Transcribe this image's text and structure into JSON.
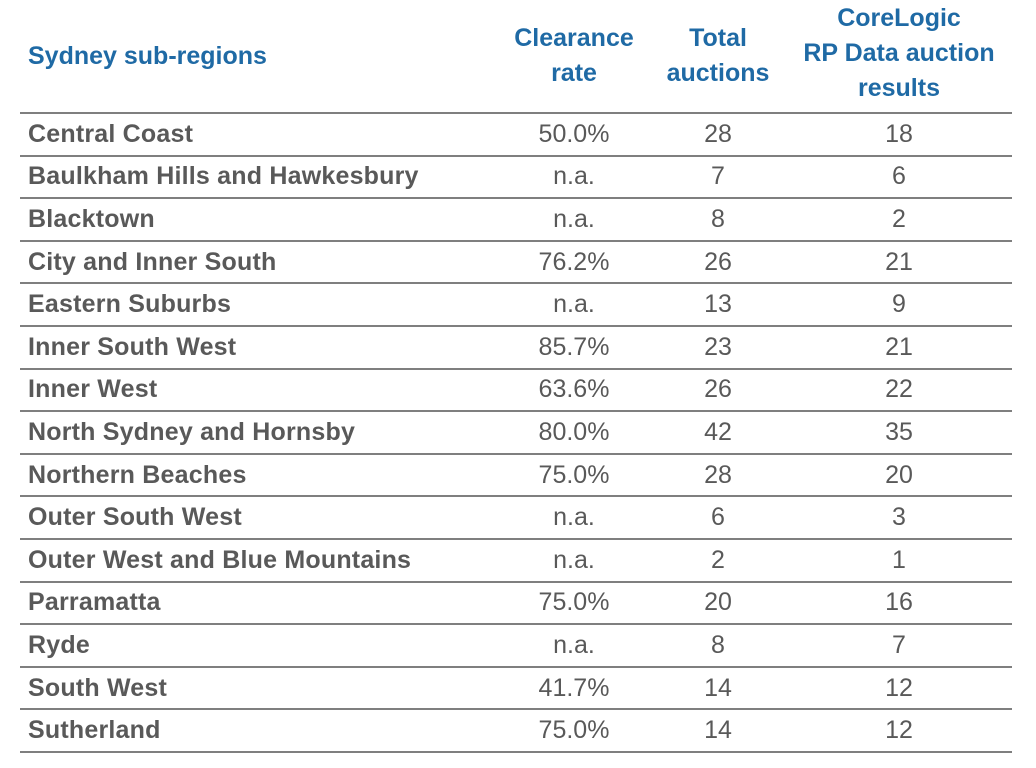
{
  "table": {
    "headers": {
      "region": "Sydney sub-regions",
      "clearance": [
        "Clearance",
        "rate"
      ],
      "total": [
        "Total",
        "auctions"
      ],
      "corelogic": [
        "CoreLogic",
        "RP Data auction",
        "results"
      ]
    },
    "rows": [
      {
        "region": "Central Coast",
        "clearance": "50.0%",
        "total": "28",
        "corelogic": "18"
      },
      {
        "region": "Baulkham Hills and Hawkesbury",
        "clearance": "n.a.",
        "total": "7",
        "corelogic": "6"
      },
      {
        "region": "Blacktown",
        "clearance": "n.a.",
        "total": "8",
        "corelogic": "2"
      },
      {
        "region": "City and Inner South",
        "clearance": "76.2%",
        "total": "26",
        "corelogic": "21"
      },
      {
        "region": "Eastern Suburbs",
        "clearance": "n.a.",
        "total": "13",
        "corelogic": "9"
      },
      {
        "region": "Inner South West",
        "clearance": "85.7%",
        "total": "23",
        "corelogic": "21"
      },
      {
        "region": "Inner West",
        "clearance": "63.6%",
        "total": "26",
        "corelogic": "22"
      },
      {
        "region": "North Sydney and Hornsby",
        "clearance": "80.0%",
        "total": "42",
        "corelogic": "35"
      },
      {
        "region": "Northern Beaches",
        "clearance": "75.0%",
        "total": "28",
        "corelogic": "20"
      },
      {
        "region": "Outer South West",
        "clearance": "n.a.",
        "total": "6",
        "corelogic": "3"
      },
      {
        "region": "Outer West and Blue Mountains",
        "clearance": "n.a.",
        "total": "2",
        "corelogic": "1"
      },
      {
        "region": "Parramatta",
        "clearance": "75.0%",
        "total": "20",
        "corelogic": "16"
      },
      {
        "region": "Ryde",
        "clearance": "n.a.",
        "total": "8",
        "corelogic": "7"
      },
      {
        "region": "South West",
        "clearance": "41.7%",
        "total": "14",
        "corelogic": "12"
      },
      {
        "region": "Sutherland",
        "clearance": "75.0%",
        "total": "14",
        "corelogic": "12"
      }
    ]
  },
  "colors": {
    "header_text": "#1f6aa5",
    "body_text": "#595959",
    "rule": "#7f7f7f"
  }
}
